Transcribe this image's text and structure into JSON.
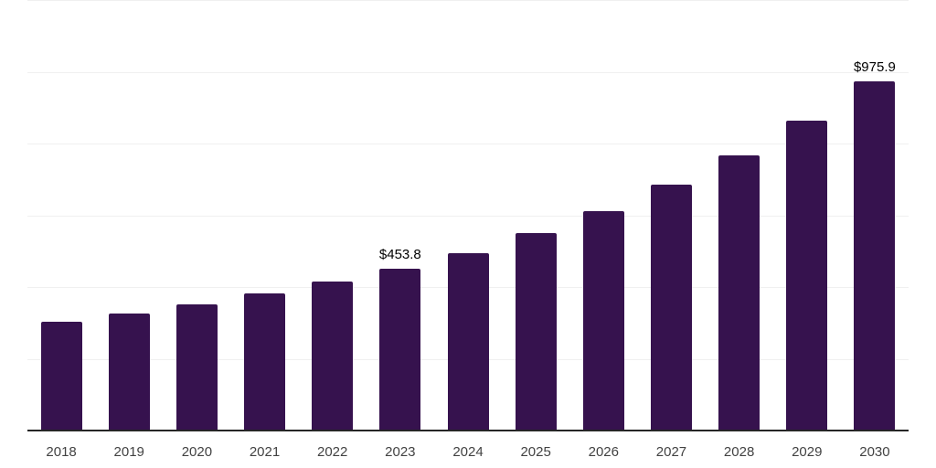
{
  "chart_data": {
    "type": "bar",
    "title": "",
    "xlabel": "",
    "ylabel": "",
    "categories": [
      "2018",
      "2019",
      "2020",
      "2021",
      "2022",
      "2023",
      "2024",
      "2025",
      "2026",
      "2027",
      "2028",
      "2029",
      "2030"
    ],
    "values": [
      305,
      328,
      354,
      386,
      419,
      453.8,
      496,
      552,
      613,
      689,
      770,
      867,
      975.9
    ],
    "data_labels": [
      "",
      "",
      "",
      "",
      "",
      "$453.8",
      "",
      "",
      "",
      "",
      "",
      "",
      "$975.9"
    ],
    "ylim": [
      0,
      1200
    ],
    "gridline_step": 200,
    "grid": true,
    "legend_position": "none",
    "bar_color": "#36124E",
    "gridline_color": "#F0F0F0",
    "axis_line_color": "#262626",
    "tick_label_color": "#424242",
    "data_label_color": "#000000",
    "background_color": "#FFFFFF"
  }
}
